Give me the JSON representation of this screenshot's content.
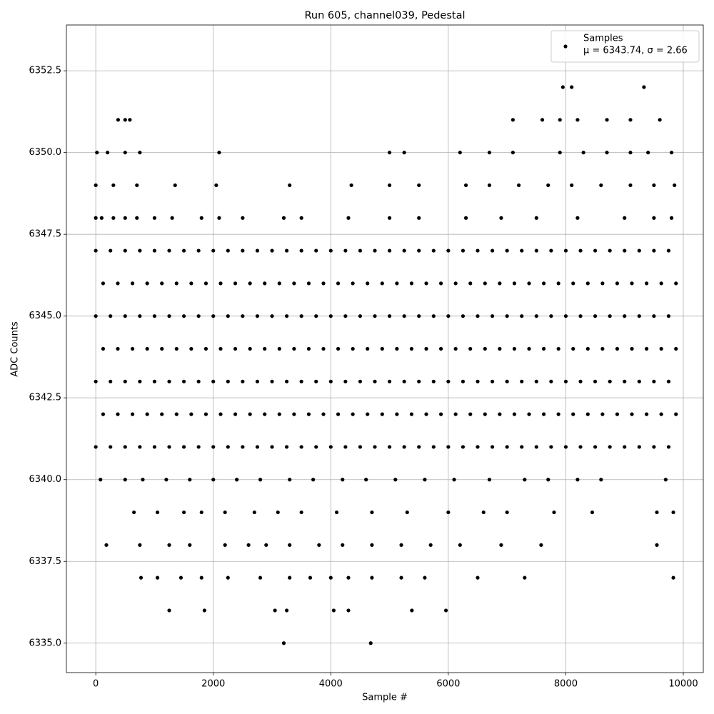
{
  "chart_data": {
    "type": "scatter",
    "title": "Run 605, channel039, Pedestal",
    "xlabel": "Sample #",
    "ylabel": "ADC Counts",
    "xlim": [
      -500,
      10340
    ],
    "ylim": [
      6334.1,
      6353.9
    ],
    "xticks": [
      0,
      2000,
      4000,
      6000,
      8000,
      10000
    ],
    "yticks": [
      {
        "value": 6335,
        "label": "6335.0"
      },
      {
        "value": 6337.5,
        "label": "6337.5"
      },
      {
        "value": 6340,
        "label": "6340.0"
      },
      {
        "value": 6342.5,
        "label": "6342.5"
      },
      {
        "value": 6345,
        "label": "6345.0"
      },
      {
        "value": 6347.5,
        "label": "6347.5"
      },
      {
        "value": 6350,
        "label": "6350.0"
      },
      {
        "value": 6352.5,
        "label": "6352.5"
      }
    ],
    "grid": true,
    "legend": "upper right",
    "series": [
      {
        "name": "Samples",
        "color": "#000000",
        "annotation": "μ = 6343.74, σ = 2.66",
        "x": [
          0,
          250,
          500,
          750,
          1000,
          1250,
          1500,
          1750,
          2000,
          2250,
          2500,
          2750,
          3000,
          3250,
          3500,
          3750,
          4000,
          4250,
          4500,
          4750,
          5000,
          5250,
          5500,
          5750,
          6000,
          6250,
          6500,
          6750,
          7000,
          7250,
          7500,
          7750,
          8000,
          8250,
          8500,
          8750,
          9000,
          9250,
          9500,
          9750,
          125,
          375,
          625,
          875,
          1125,
          1375,
          1625,
          1875,
          2125,
          2375,
          2625,
          2875,
          3125,
          3375,
          3625,
          3875,
          4125,
          4375,
          4625,
          4875,
          5125,
          5375,
          5625,
          5875,
          6125,
          6375,
          6625,
          6875,
          7125,
          7375,
          7625,
          7875,
          8125,
          8375,
          8625,
          8875,
          9125,
          9375,
          9625,
          9875,
          0,
          250,
          500,
          750,
          1000,
          1250,
          1500,
          1750,
          2000,
          2250,
          2500,
          2750,
          3000,
          3250,
          3500,
          3750,
          4000,
          4250,
          4500,
          4750,
          5000,
          5250,
          5500,
          5750,
          6000,
          6250,
          6500,
          6750,
          7000,
          7250,
          7500,
          7750,
          8000,
          8250,
          8500,
          8750,
          9000,
          9250,
          9500,
          9750,
          125,
          375,
          625,
          875,
          1125,
          1375,
          1625,
          1875,
          2125,
          2375,
          2625,
          2875,
          3125,
          3375,
          3625,
          3875,
          4125,
          4375,
          4625,
          4875,
          5125,
          5375,
          5625,
          5875,
          6125,
          6375,
          6625,
          6875,
          7125,
          7375,
          7625,
          7875,
          8125,
          8375,
          8625,
          8875,
          9125,
          9375,
          9625,
          9875,
          0,
          250,
          500,
          750,
          1000,
          1250,
          1500,
          1750,
          2000,
          2250,
          2500,
          2750,
          3000,
          3250,
          3500,
          3750,
          4000,
          4250,
          4500,
          4750,
          5000,
          5250,
          5500,
          5750,
          6000,
          6250,
          6500,
          6750,
          7000,
          7250,
          7500,
          7750,
          8000,
          8250,
          8500,
          8750,
          9000,
          9250,
          9500,
          9750,
          125,
          375,
          625,
          875,
          1125,
          1375,
          1625,
          1875,
          2125,
          2375,
          2625,
          2875,
          3125,
          3375,
          3625,
          3875,
          4125,
          4375,
          4625,
          4875,
          5125,
          5375,
          5625,
          5875,
          6125,
          6375,
          6625,
          6875,
          7125,
          7375,
          7625,
          7875,
          8125,
          8375,
          8625,
          8875,
          9125,
          9375,
          9625,
          9875,
          0,
          250,
          500,
          750,
          1000,
          1250,
          1500,
          1750,
          2000,
          2250,
          2500,
          2750,
          3000,
          3250,
          3500,
          3750,
          4000,
          4250,
          4500,
          4750,
          5000,
          5250,
          5500,
          5750,
          6000,
          6250,
          6500,
          6750,
          7000,
          7250,
          7500,
          7750,
          8000,
          8250,
          8500,
          8750,
          9000,
          9250,
          9500,
          9750,
          0,
          100,
          300,
          500,
          700,
          1000,
          1300,
          1800,
          2100,
          2500,
          3200,
          3500,
          4300,
          5000,
          5500,
          6300,
          6900,
          7500,
          8200,
          9000,
          9500,
          9800,
          80,
          500,
          800,
          1200,
          1600,
          2000,
          2400,
          2800,
          3300,
          3700,
          4200,
          4600,
          5100,
          5600,
          6100,
          6700,
          7300,
          7700,
          8200,
          8600,
          9700,
          0,
          300,
          700,
          1350,
          2050,
          3300,
          4350,
          5000,
          5500,
          6300,
          6700,
          7200,
          7700,
          8100,
          8600,
          9100,
          9500,
          9850,
          20,
          200,
          500,
          750,
          2100,
          5000,
          5250,
          6200,
          6700,
          7100,
          7900,
          8300,
          8700,
          9100,
          9400,
          9800,
          380,
          500,
          580,
          7100,
          7600,
          7900,
          8200,
          8700,
          9100,
          9600,
          7950,
          8100,
          9330,
          650,
          1050,
          1500,
          1800,
          2200,
          2700,
          3100,
          3500,
          4100,
          4700,
          5300,
          6000,
          6600,
          7000,
          7800,
          8450,
          9550,
          9830,
          180,
          750,
          1250,
          1600,
          2200,
          2600,
          2900,
          3300,
          3800,
          4200,
          4700,
          5200,
          5700,
          6200,
          6900,
          7580,
          9550,
          770,
          1050,
          1450,
          1800,
          2250,
          2800,
          3300,
          3650,
          4000,
          4300,
          4700,
          5200,
          5600,
          6500,
          7300,
          9830,
          1250,
          1850,
          3050,
          3250,
          4050,
          4300,
          5380,
          5960,
          3200,
          4680
        ],
        "values": [
          6341,
          6341,
          6341,
          6341,
          6341,
          6341,
          6341,
          6341,
          6341,
          6341,
          6341,
          6341,
          6341,
          6341,
          6341,
          6341,
          6341,
          6341,
          6341,
          6341,
          6341,
          6341,
          6341,
          6341,
          6341,
          6341,
          6341,
          6341,
          6341,
          6341,
          6341,
          6341,
          6341,
          6341,
          6341,
          6341,
          6341,
          6341,
          6341,
          6341,
          6342,
          6342,
          6342,
          6342,
          6342,
          6342,
          6342,
          6342,
          6342,
          6342,
          6342,
          6342,
          6342,
          6342,
          6342,
          6342,
          6342,
          6342,
          6342,
          6342,
          6342,
          6342,
          6342,
          6342,
          6342,
          6342,
          6342,
          6342,
          6342,
          6342,
          6342,
          6342,
          6342,
          6342,
          6342,
          6342,
          6342,
          6342,
          6342,
          6342,
          6343,
          6343,
          6343,
          6343,
          6343,
          6343,
          6343,
          6343,
          6343,
          6343,
          6343,
          6343,
          6343,
          6343,
          6343,
          6343,
          6343,
          6343,
          6343,
          6343,
          6343,
          6343,
          6343,
          6343,
          6343,
          6343,
          6343,
          6343,
          6343,
          6343,
          6343,
          6343,
          6343,
          6343,
          6343,
          6343,
          6343,
          6343,
          6343,
          6343,
          6344,
          6344,
          6344,
          6344,
          6344,
          6344,
          6344,
          6344,
          6344,
          6344,
          6344,
          6344,
          6344,
          6344,
          6344,
          6344,
          6344,
          6344,
          6344,
          6344,
          6344,
          6344,
          6344,
          6344,
          6344,
          6344,
          6344,
          6344,
          6344,
          6344,
          6344,
          6344,
          6344,
          6344,
          6344,
          6344,
          6344,
          6344,
          6344,
          6344,
          6345,
          6345,
          6345,
          6345,
          6345,
          6345,
          6345,
          6345,
          6345,
          6345,
          6345,
          6345,
          6345,
          6345,
          6345,
          6345,
          6345,
          6345,
          6345,
          6345,
          6345,
          6345,
          6345,
          6345,
          6345,
          6345,
          6345,
          6345,
          6345,
          6345,
          6345,
          6345,
          6345,
          6345,
          6345,
          6345,
          6345,
          6345,
          6345,
          6345,
          6346,
          6346,
          6346,
          6346,
          6346,
          6346,
          6346,
          6346,
          6346,
          6346,
          6346,
          6346,
          6346,
          6346,
          6346,
          6346,
          6346,
          6346,
          6346,
          6346,
          6346,
          6346,
          6346,
          6346,
          6346,
          6346,
          6346,
          6346,
          6346,
          6346,
          6346,
          6346,
          6346,
          6346,
          6346,
          6346,
          6346,
          6346,
          6346,
          6346,
          6347,
          6347,
          6347,
          6347,
          6347,
          6347,
          6347,
          6347,
          6347,
          6347,
          6347,
          6347,
          6347,
          6347,
          6347,
          6347,
          6347,
          6347,
          6347,
          6347,
          6347,
          6347,
          6347,
          6347,
          6347,
          6347,
          6347,
          6347,
          6347,
          6347,
          6347,
          6347,
          6347,
          6347,
          6347,
          6347,
          6347,
          6347,
          6347,
          6347,
          6348,
          6348,
          6348,
          6348,
          6348,
          6348,
          6348,
          6348,
          6348,
          6348,
          6348,
          6348,
          6348,
          6348,
          6348,
          6348,
          6348,
          6348,
          6348,
          6348,
          6348,
          6348,
          6340,
          6340,
          6340,
          6340,
          6340,
          6340,
          6340,
          6340,
          6340,
          6340,
          6340,
          6340,
          6340,
          6340,
          6340,
          6340,
          6340,
          6340,
          6340,
          6340,
          6340,
          6349,
          6349,
          6349,
          6349,
          6349,
          6349,
          6349,
          6349,
          6349,
          6349,
          6349,
          6349,
          6349,
          6349,
          6349,
          6349,
          6349,
          6349,
          6350,
          6350,
          6350,
          6350,
          6350,
          6350,
          6350,
          6350,
          6350,
          6350,
          6350,
          6350,
          6350,
          6350,
          6350,
          6350,
          6351,
          6351,
          6351,
          6351,
          6351,
          6351,
          6351,
          6351,
          6351,
          6351,
          6352,
          6352,
          6352,
          6339,
          6339,
          6339,
          6339,
          6339,
          6339,
          6339,
          6339,
          6339,
          6339,
          6339,
          6339,
          6339,
          6339,
          6339,
          6339,
          6339,
          6339,
          6338,
          6338,
          6338,
          6338,
          6338,
          6338,
          6338,
          6338,
          6338,
          6338,
          6338,
          6338,
          6338,
          6338,
          6338,
          6338,
          6338,
          6337,
          6337,
          6337,
          6337,
          6337,
          6337,
          6337,
          6337,
          6337,
          6337,
          6337,
          6337,
          6337,
          6337,
          6337,
          6337,
          6336,
          6336,
          6336,
          6336,
          6336,
          6336,
          6336,
          6336,
          6335,
          6335
        ]
      }
    ]
  }
}
